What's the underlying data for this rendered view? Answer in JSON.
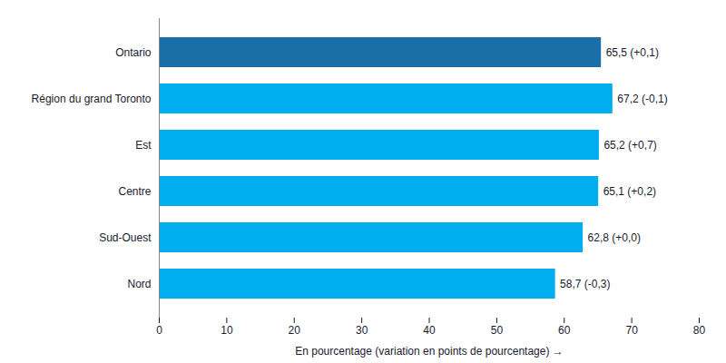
{
  "chart_data": {
    "type": "bar",
    "orientation": "horizontal",
    "categories": [
      "Ontario",
      "Région du grand Toronto",
      "Est",
      "Centre",
      "Sud-Ouest",
      "Nord"
    ],
    "values": [
      65.5,
      67.2,
      65.2,
      65.1,
      62.8,
      58.7
    ],
    "value_labels": [
      "65,5 (+0,1)",
      "67,2 (-0,1)",
      "65,2 (+0,7)",
      "65,1 (+0,2)",
      "62,8 (+0,0)",
      "58,7 (-0,3)"
    ],
    "data_labels": true,
    "colors": [
      "#1a6fa8",
      "#00adef",
      "#00adef",
      "#00adef",
      "#00adef",
      "#00adef"
    ],
    "xlabel": "En pourcentage (variation en points de pourcentage)",
    "xlim": [
      0,
      80
    ],
    "xticks": [
      0,
      10,
      20,
      30,
      40,
      50,
      60,
      70,
      80
    ],
    "grid": false
  }
}
